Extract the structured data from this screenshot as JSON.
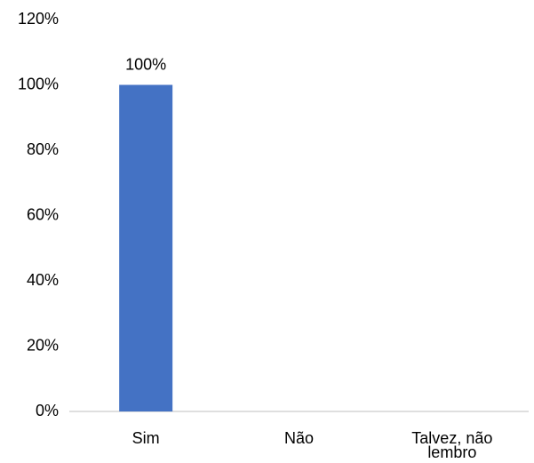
{
  "chart_data": {
    "type": "bar",
    "categories": [
      "Sim",
      "Não",
      "Talvez, não lembro"
    ],
    "values": [
      100,
      0,
      0
    ],
    "value_labels": [
      "100%",
      null,
      null
    ],
    "color": "#4472c4",
    "ylim": [
      0,
      120
    ],
    "yticks": [
      {
        "value": 0,
        "label": "0%"
      },
      {
        "value": 20,
        "label": "20%"
      },
      {
        "value": 40,
        "label": "40%"
      },
      {
        "value": 60,
        "label": "60%"
      },
      {
        "value": 80,
        "label": "80%"
      },
      {
        "value": 100,
        "label": "100%"
      },
      {
        "value": 120,
        "label": "120%"
      }
    ],
    "grid": false
  }
}
